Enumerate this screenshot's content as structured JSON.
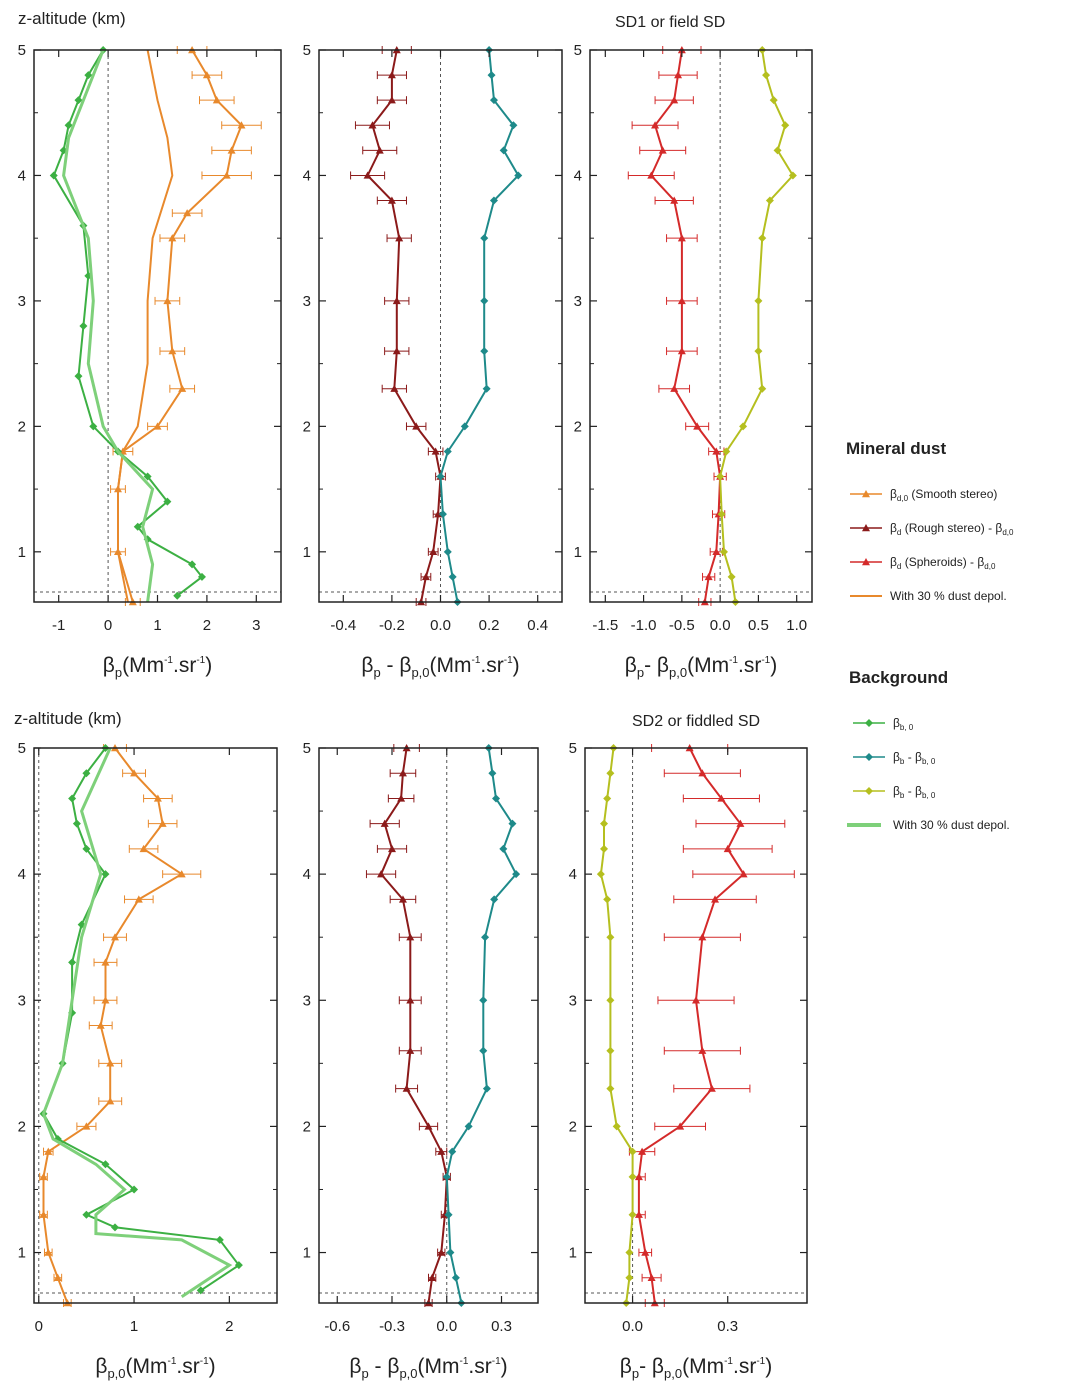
{
  "figure": {
    "row_labels": [
      "z-altitude (km)",
      "z-altitude (km)"
    ],
    "panel_titles": [
      "SD1 or field SD",
      "SD2 or fiddled SD"
    ]
  },
  "legend": {
    "mineral_dust": {
      "heading": "Mineral dust",
      "items": [
        {
          "label": "β",
          "sub": "d,0",
          "text": " (Smooth stereo)",
          "color": "#e8892c",
          "marker": "triangle"
        },
        {
          "label": "β",
          "sub": "d",
          "text": " (Rough stereo) - β",
          "sub2": "d,0",
          "color": "#8b1a1a",
          "marker": "triangle"
        },
        {
          "label": "β",
          "sub": "d",
          "text": " (Spheroids) - β",
          "sub2": "d,0",
          "color": "#d42a2a",
          "marker": "triangle"
        },
        {
          "label": "With 30 % dust depol.",
          "color": "#e8892c",
          "marker": "line"
        }
      ]
    },
    "background": {
      "heading": "Background",
      "items": [
        {
          "label": "β",
          "sub": "b, 0",
          "text": "",
          "color": "#3cb043",
          "marker": "diamond"
        },
        {
          "label": "β",
          "sub": "b",
          "text": " - β",
          "sub2": "b, 0",
          "color": "#1e8a8a",
          "marker": "diamond"
        },
        {
          "label": "β",
          "sub": "b",
          "text": " - β",
          "sub2": "b, 0",
          "color": "#b5bf1f",
          "marker": "diamond"
        },
        {
          "label": "With 30 % dust depol.",
          "color": "#7ed07a",
          "marker": "thickline"
        }
      ]
    }
  },
  "colors": {
    "dust_smooth": "#e8892c",
    "dust_rough": "#8b1a1a",
    "dust_spheroid": "#d42a2a",
    "bg": "#3cb043",
    "bg_light": "#7ed07a",
    "bg_diff_rough": "#1e8a8a",
    "bg_diff_spheroid": "#b5bf1f"
  },
  "chart_data": [
    {
      "type": "line",
      "panel": "row1-left",
      "ylabel": "z-altitude (km)",
      "xlabel": {
        "main": "β",
        "sub": "p",
        "rest": "(Mm",
        "sup1": "-1",
        "mid": ".sr",
        "sup2": "-1",
        "end": ")"
      },
      "xlim": [
        -1.5,
        3.5
      ],
      "ylim": [
        0.6,
        5
      ],
      "xticks": [
        -1,
        0,
        1,
        2,
        3
      ],
      "xticklabels": [
        "-1",
        "0",
        "1",
        "2",
        "3"
      ],
      "yticks": [
        1,
        2,
        3,
        4,
        5
      ],
      "series": [
        {
          "color": "#e8892c",
          "marker": "triangle",
          "errorbars": true,
          "z": [
            0.6,
            1.0,
            1.5,
            1.8,
            2.0,
            2.3,
            2.6,
            3.0,
            3.5,
            3.7,
            4.0,
            4.2,
            4.4,
            4.6,
            4.8,
            5.0
          ],
          "x": [
            0.5,
            0.2,
            0.2,
            0.3,
            1.0,
            1.5,
            1.3,
            1.2,
            1.3,
            1.6,
            2.4,
            2.5,
            2.7,
            2.2,
            2.0,
            1.7
          ],
          "err": [
            0.15,
            0.15,
            0.15,
            0.2,
            0.2,
            0.25,
            0.25,
            0.25,
            0.25,
            0.3,
            0.5,
            0.4,
            0.4,
            0.35,
            0.3,
            0.3
          ]
        },
        {
          "color": "#e8892c",
          "marker": "none",
          "z": [
            0.6,
            1.0,
            1.5,
            1.8,
            2.0,
            2.5,
            3.0,
            3.5,
            4.0,
            4.3,
            4.6,
            5.0
          ],
          "x": [
            0.4,
            0.2,
            0.2,
            0.3,
            0.6,
            0.8,
            0.8,
            0.9,
            1.3,
            1.2,
            1.0,
            0.8
          ]
        },
        {
          "color": "#3cb043",
          "marker": "diamond",
          "z": [
            0.65,
            0.8,
            0.9,
            1.1,
            1.2,
            1.4,
            1.6,
            1.8,
            2.0,
            2.4,
            2.8,
            3.2,
            3.6,
            4.0,
            4.2,
            4.4,
            4.6,
            4.8,
            5.0
          ],
          "x": [
            1.4,
            1.9,
            1.7,
            0.8,
            0.6,
            1.2,
            0.8,
            0.2,
            -0.3,
            -0.6,
            -0.5,
            -0.4,
            -0.5,
            -1.1,
            -0.9,
            -0.8,
            -0.6,
            -0.4,
            -0.1
          ]
        },
        {
          "color": "#7ed07a",
          "marker": "none",
          "width": 3,
          "z": [
            0.6,
            0.9,
            1.2,
            1.5,
            1.8,
            2.0,
            2.5,
            3.0,
            3.5,
            4.0,
            4.3,
            4.6,
            5.0
          ],
          "x": [
            0.8,
            0.9,
            0.7,
            0.9,
            0.2,
            -0.1,
            -0.4,
            -0.3,
            -0.4,
            -0.9,
            -0.8,
            -0.5,
            -0.1
          ]
        }
      ]
    },
    {
      "type": "line",
      "panel": "row1-middle",
      "xlabel": {
        "main": "β",
        "sub": "p",
        "rest": " - β",
        "sub2": "p,0",
        "rest2": "(Mm",
        "sup1": "-1",
        "mid": ".sr",
        "sup2": "-1",
        "end": ")"
      },
      "xlim": [
        -0.5,
        0.5
      ],
      "ylim": [
        0.6,
        5
      ],
      "xticks": [
        -0.4,
        -0.2,
        0.0,
        0.2,
        0.4
      ],
      "xticklabels": [
        "-0.4",
        "-0.2",
        "0.0",
        "0.2",
        "0.4"
      ],
      "yticks": [
        1,
        2,
        3,
        4,
        5
      ],
      "series": [
        {
          "color": "#8b1a1a",
          "marker": "triangle",
          "errorbars": true,
          "z": [
            0.6,
            0.8,
            1.0,
            1.3,
            1.6,
            1.8,
            2.0,
            2.3,
            2.6,
            3.0,
            3.5,
            3.8,
            4.0,
            4.2,
            4.4,
            4.6,
            4.8,
            5.0
          ],
          "x": [
            -0.08,
            -0.06,
            -0.03,
            -0.01,
            0.0,
            -0.02,
            -0.1,
            -0.19,
            -0.18,
            -0.18,
            -0.17,
            -0.2,
            -0.3,
            -0.25,
            -0.28,
            -0.2,
            -0.2,
            -0.18
          ],
          "err": [
            0.02,
            0.02,
            0.02,
            0.02,
            0.02,
            0.03,
            0.04,
            0.05,
            0.05,
            0.05,
            0.05,
            0.06,
            0.07,
            0.07,
            0.07,
            0.06,
            0.06,
            0.06
          ]
        },
        {
          "color": "#1e8a8a",
          "marker": "diamond",
          "z": [
            0.6,
            0.8,
            1.0,
            1.3,
            1.6,
            1.8,
            2.0,
            2.3,
            2.6,
            3.0,
            3.5,
            3.8,
            4.0,
            4.2,
            4.4,
            4.6,
            4.8,
            5.0
          ],
          "x": [
            0.07,
            0.05,
            0.03,
            0.01,
            0.0,
            0.03,
            0.1,
            0.19,
            0.18,
            0.18,
            0.18,
            0.22,
            0.32,
            0.26,
            0.3,
            0.22,
            0.21,
            0.2
          ]
        }
      ]
    },
    {
      "type": "line",
      "panel": "row1-right",
      "title": "SD1 or field SD",
      "xlabel": {
        "main": "β",
        "sub": "p",
        "rest": "- β",
        "sub2": "p,0",
        "rest2": "(Mm",
        "sup1": "-1",
        "mid": ".sr",
        "sup2": "-1",
        "end": ")"
      },
      "xlim": [
        -1.7,
        1.2
      ],
      "ylim": [
        0.6,
        5
      ],
      "xticks": [
        -1.5,
        -1.0,
        -0.5,
        0.0,
        0.5,
        1.0
      ],
      "xticklabels": [
        "-1.5",
        "-1.0",
        "-0.5",
        "0.0",
        "0.5",
        "1.0"
      ],
      "yticks": [
        1,
        2,
        3,
        4,
        5
      ],
      "series": [
        {
          "color": "#d42a2a",
          "marker": "triangle",
          "errorbars": true,
          "z": [
            0.6,
            0.8,
            1.0,
            1.3,
            1.6,
            1.8,
            2.0,
            2.3,
            2.6,
            3.0,
            3.5,
            3.8,
            4.0,
            4.2,
            4.4,
            4.6,
            4.8,
            5.0
          ],
          "x": [
            -0.2,
            -0.15,
            -0.05,
            -0.02,
            0.0,
            -0.05,
            -0.3,
            -0.6,
            -0.5,
            -0.5,
            -0.5,
            -0.6,
            -0.9,
            -0.75,
            -0.85,
            -0.6,
            -0.55,
            -0.5
          ],
          "err": [
            0.08,
            0.08,
            0.08,
            0.08,
            0.08,
            0.1,
            0.15,
            0.2,
            0.2,
            0.2,
            0.2,
            0.25,
            0.3,
            0.3,
            0.3,
            0.25,
            0.25,
            0.25
          ]
        },
        {
          "color": "#b5bf1f",
          "marker": "diamond",
          "z": [
            0.6,
            0.8,
            1.0,
            1.3,
            1.6,
            1.8,
            2.0,
            2.3,
            2.6,
            3.0,
            3.5,
            3.8,
            4.0,
            4.2,
            4.4,
            4.6,
            4.8,
            5.0
          ],
          "x": [
            0.2,
            0.15,
            0.05,
            0.02,
            0.0,
            0.08,
            0.3,
            0.55,
            0.5,
            0.5,
            0.55,
            0.65,
            0.95,
            0.75,
            0.85,
            0.7,
            0.6,
            0.55
          ]
        }
      ]
    },
    {
      "type": "line",
      "panel": "row2-left",
      "ylabel": "z-altitude (km)",
      "xlabel": {
        "main": "β",
        "sub": "p,0",
        "rest": "(Mm",
        "sup1": "-1",
        "mid": ".sr",
        "sup2": "-1",
        "end": ")"
      },
      "xlim": [
        -0.05,
        2.5
      ],
      "ylim": [
        0.6,
        5
      ],
      "xticks": [
        0,
        1,
        2
      ],
      "xticklabels": [
        "0",
        "1",
        "2"
      ],
      "yticks": [
        1,
        2,
        3,
        4,
        5
      ],
      "series": [
        {
          "color": "#e8892c",
          "marker": "triangle",
          "errorbars": true,
          "z": [
            0.6,
            0.8,
            1.0,
            1.3,
            1.6,
            1.8,
            2.0,
            2.2,
            2.5,
            2.8,
            3.0,
            3.3,
            3.5,
            3.8,
            4.0,
            4.2,
            4.4,
            4.6,
            4.8,
            5.0
          ],
          "x": [
            0.3,
            0.2,
            0.1,
            0.05,
            0.05,
            0.1,
            0.5,
            0.75,
            0.75,
            0.65,
            0.7,
            0.7,
            0.8,
            1.05,
            1.5,
            1.1,
            1.3,
            1.25,
            1.0,
            0.8
          ],
          "err": [
            0.04,
            0.04,
            0.04,
            0.04,
            0.04,
            0.05,
            0.1,
            0.12,
            0.12,
            0.12,
            0.12,
            0.12,
            0.12,
            0.15,
            0.2,
            0.15,
            0.15,
            0.15,
            0.12,
            0.12
          ]
        },
        {
          "color": "#3cb043",
          "marker": "diamond",
          "z": [
            0.7,
            0.9,
            1.1,
            1.2,
            1.3,
            1.5,
            1.7,
            1.9,
            2.1,
            2.5,
            2.9,
            3.3,
            3.6,
            4.0,
            4.2,
            4.4,
            4.6,
            4.8,
            5.0
          ],
          "x": [
            1.7,
            2.1,
            1.9,
            0.8,
            0.5,
            1.0,
            0.7,
            0.2,
            0.05,
            0.25,
            0.35,
            0.35,
            0.45,
            0.7,
            0.5,
            0.4,
            0.35,
            0.5,
            0.7
          ]
        },
        {
          "color": "#7ed07a",
          "marker": "none",
          "width": 3,
          "z": [
            0.65,
            0.9,
            1.1,
            1.15,
            1.3,
            1.5,
            1.7,
            1.9,
            2.1,
            2.5,
            3.0,
            3.5,
            4.0,
            4.5,
            5.0
          ],
          "x": [
            1.5,
            2.0,
            1.5,
            0.6,
            0.6,
            0.9,
            0.6,
            0.15,
            0.05,
            0.25,
            0.35,
            0.45,
            0.65,
            0.45,
            0.75
          ]
        }
      ]
    },
    {
      "type": "line",
      "panel": "row2-middle",
      "xlabel": {
        "main": "β",
        "sub": "p",
        "rest": " - β",
        "sub2": "p,0",
        "rest2": "(Mm",
        "sup1": "-1",
        "mid": ".sr",
        "sup2": "-1",
        "end": ")"
      },
      "xlim": [
        -0.7,
        0.5
      ],
      "ylim": [
        0.6,
        5
      ],
      "xticks": [
        -0.6,
        -0.3,
        0.0,
        0.3
      ],
      "xticklabels": [
        "-0.6",
        "-0.3",
        "0.0",
        "0.3"
      ],
      "yticks": [
        1,
        2,
        3,
        4,
        5
      ],
      "series": [
        {
          "color": "#8b1a1a",
          "marker": "triangle",
          "errorbars": true,
          "z": [
            0.6,
            0.8,
            1.0,
            1.3,
            1.6,
            1.8,
            2.0,
            2.3,
            2.6,
            3.0,
            3.5,
            3.8,
            4.0,
            4.2,
            4.4,
            4.6,
            4.8,
            5.0
          ],
          "x": [
            -0.1,
            -0.08,
            -0.03,
            -0.01,
            0.0,
            -0.03,
            -0.1,
            -0.22,
            -0.2,
            -0.2,
            -0.2,
            -0.24,
            -0.36,
            -0.3,
            -0.34,
            -0.25,
            -0.24,
            -0.22
          ],
          "err": [
            0.02,
            0.02,
            0.02,
            0.02,
            0.02,
            0.03,
            0.05,
            0.06,
            0.06,
            0.06,
            0.06,
            0.07,
            0.08,
            0.08,
            0.08,
            0.07,
            0.07,
            0.07
          ]
        },
        {
          "color": "#1e8a8a",
          "marker": "diamond",
          "z": [
            0.6,
            0.8,
            1.0,
            1.3,
            1.6,
            1.8,
            2.0,
            2.3,
            2.6,
            3.0,
            3.5,
            3.8,
            4.0,
            4.2,
            4.4,
            4.6,
            4.8,
            5.0
          ],
          "x": [
            0.08,
            0.05,
            0.02,
            0.01,
            0.0,
            0.03,
            0.12,
            0.22,
            0.2,
            0.2,
            0.21,
            0.26,
            0.38,
            0.31,
            0.36,
            0.27,
            0.25,
            0.23
          ]
        }
      ]
    },
    {
      "type": "line",
      "panel": "row2-right",
      "title": "SD2 or fiddled SD",
      "xlabel": {
        "main": "β",
        "sub": "p",
        "rest": "- β",
        "sub2": "p,0",
        "rest2": "(Mm",
        "sup1": "-1",
        "mid": ".sr",
        "sup2": "-1",
        "end": ")"
      },
      "xlim": [
        -0.15,
        0.55
      ],
      "ylim": [
        0.6,
        5
      ],
      "xticks": [
        0.0,
        0.3
      ],
      "xticklabels": [
        "0.0",
        "0.3"
      ],
      "yticks": [
        1,
        2,
        3,
        4,
        5
      ],
      "series": [
        {
          "color": "#d42a2a",
          "marker": "triangle",
          "errorbars": true,
          "z": [
            0.6,
            0.8,
            1.0,
            1.3,
            1.6,
            1.8,
            2.0,
            2.3,
            2.6,
            3.0,
            3.5,
            3.8,
            4.0,
            4.2,
            4.4,
            4.6,
            4.8,
            5.0
          ],
          "x": [
            0.07,
            0.06,
            0.04,
            0.02,
            0.02,
            0.03,
            0.15,
            0.25,
            0.22,
            0.2,
            0.22,
            0.26,
            0.35,
            0.3,
            0.34,
            0.28,
            0.22,
            0.18
          ],
          "err": [
            0.03,
            0.03,
            0.02,
            0.02,
            0.02,
            0.04,
            0.08,
            0.12,
            0.12,
            0.12,
            0.12,
            0.13,
            0.16,
            0.14,
            0.14,
            0.12,
            0.12,
            0.12
          ]
        },
        {
          "color": "#b5bf1f",
          "marker": "diamond",
          "z": [
            0.6,
            0.8,
            1.0,
            1.3,
            1.6,
            1.8,
            2.0,
            2.3,
            2.6,
            3.0,
            3.5,
            3.8,
            4.0,
            4.2,
            4.4,
            4.6,
            4.8,
            5.0
          ],
          "x": [
            -0.02,
            -0.01,
            -0.01,
            0.0,
            0.0,
            0.0,
            -0.05,
            -0.07,
            -0.07,
            -0.07,
            -0.07,
            -0.08,
            -0.1,
            -0.09,
            -0.09,
            -0.08,
            -0.07,
            -0.06
          ]
        }
      ]
    }
  ]
}
